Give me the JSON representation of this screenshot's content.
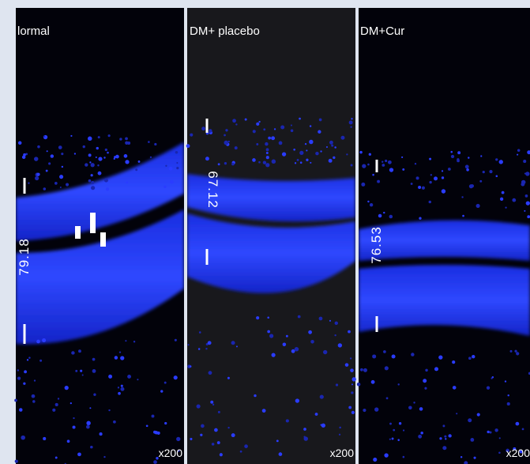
{
  "panels": [
    {
      "label": "lormal",
      "measurement": "79.18",
      "magnification": "x200"
    },
    {
      "label": "DM+ placebo",
      "measurement": "67.12",
      "magnification": "x200"
    },
    {
      "label": "DM+Cur",
      "measurement": "76.53",
      "magnification": "x200"
    }
  ]
}
